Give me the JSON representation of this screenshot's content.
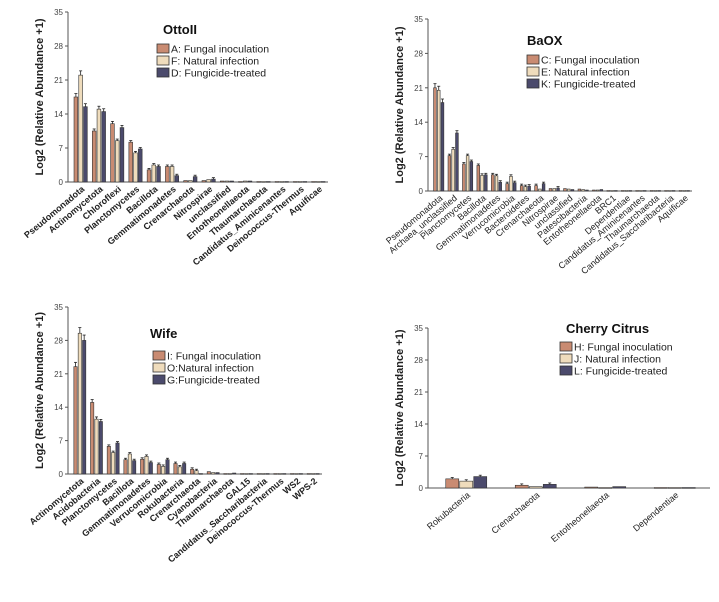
{
  "chart_data": [
    {
      "type": "bar",
      "title": "OttoII",
      "ylabel": "Log2 (Relative Abundance +1)",
      "ylim": [
        0,
        35
      ],
      "yticks": [
        0,
        7,
        14,
        21,
        28,
        35
      ],
      "legend_position": "top-right",
      "colors": [
        "#c98b72",
        "#efdcbc",
        "#4b4a6c"
      ],
      "categories": [
        "Pseudomonadota",
        "Actinomycetota",
        "Chloroflexi",
        "Planctomycetes",
        "Bacillota",
        "Gemmatimonadetes",
        "Crenarchaeota",
        "Nitrospirae",
        "unclassified",
        "Entotheonellaeota",
        "Thaumarchaeota",
        "Candidatus_Aminicenantes",
        "Deinococcus-Thermus",
        "Aquificae"
      ],
      "series": [
        {
          "name": "A: Fungal inoculation",
          "values": [
            17.5,
            10.5,
            12.0,
            8.2,
            2.5,
            3.2,
            0.3,
            0.3,
            0.2,
            0.1,
            0.1,
            0.1,
            0.1,
            0.1
          ]
        },
        {
          "name": "F: Natural infection",
          "values": [
            22.0,
            15.0,
            8.5,
            6.0,
            3.5,
            3.2,
            0.3,
            0.5,
            0.2,
            0.2,
            0.1,
            0.1,
            0.1,
            0.1
          ]
        },
        {
          "name": "D: Fungicide-treated",
          "values": [
            15.5,
            14.5,
            11.2,
            6.8,
            3.2,
            1.3,
            1.1,
            0.6,
            0.2,
            0.2,
            0.1,
            0.1,
            0.1,
            0.1
          ]
        }
      ]
    },
    {
      "type": "bar",
      "title": "BaOX",
      "ylabel": "Log2 (Relative Abundance +1)",
      "ylim": [
        0,
        35
      ],
      "yticks": [
        0,
        7,
        14,
        21,
        28,
        35
      ],
      "legend_position": "top-right",
      "colors": [
        "#c98b72",
        "#efdcbc",
        "#4b4a6c"
      ],
      "categories": [
        "Pseudomonadota",
        "Archaea_unclassified",
        "Planctomycetes",
        "Bacillota",
        "Gemmatimonadetes",
        "Verrucomicrobia",
        "Bacteroidetes",
        "Crenarchaeota",
        "Nitrospirae",
        "unclassified",
        "Patescibacteria",
        "Entotheonellaeota",
        "BRC1",
        "Dependentiae",
        "Candidatus_Aminicenantes",
        "Thaumarchaeota",
        "Candidatus_Saccharibacteria",
        "Aquificae"
      ],
      "series": [
        {
          "name": "C: Fungal inoculation",
          "values": [
            21.0,
            7.2,
            5.5,
            5.2,
            3.3,
            1.5,
            1.1,
            1.1,
            0.5,
            0.5,
            0.4,
            0.2,
            0.1,
            0.1,
            0.1,
            0.1,
            0.1,
            0.1
          ]
        },
        {
          "name": "E: Natural infection",
          "values": [
            20.5,
            8.5,
            7.2,
            3.2,
            3.1,
            3.0,
            0.9,
            0.4,
            0.5,
            0.4,
            0.3,
            0.2,
            0.1,
            0.1,
            0.1,
            0.1,
            0.1,
            0.1
          ]
        },
        {
          "name": "K: Fungicide-treated",
          "values": [
            18.0,
            11.8,
            6.0,
            3.3,
            1.8,
            1.7,
            1.0,
            1.5,
            0.6,
            0.3,
            0.2,
            0.3,
            0.1,
            0.1,
            0.1,
            0.1,
            0.1,
            0.1
          ]
        }
      ]
    },
    {
      "type": "bar",
      "title": "Wife",
      "ylabel": "Log2 (Relative Abundance +1)",
      "ylim": [
        0,
        35
      ],
      "yticks": [
        0,
        7,
        14,
        21,
        28,
        35
      ],
      "legend_position": "top-right",
      "colors": [
        "#c98b72",
        "#efdcbc",
        "#4b4a6c"
      ],
      "categories": [
        "Actinomycetota",
        "Acidobacteria",
        "Planctomycetes",
        "Bacillota",
        "Gemmatimonadetes",
        "Verrucomicrobia",
        "Rokubacteria",
        "Crenarchaeota",
        "Cyanobacteria",
        "Thaumarchaeota",
        "GAL15",
        "Candidatus_Saccharibacteria",
        "Deinococcus-Thermus",
        "WS2",
        "WPS-2"
      ],
      "series": [
        {
          "name": "I: Fungal inoculation",
          "values": [
            22.5,
            15.0,
            5.8,
            3.0,
            3.1,
            2.0,
            2.2,
            1.0,
            0.5,
            0.1,
            0.1,
            0.1,
            0.1,
            0.1,
            0.1
          ]
        },
        {
          "name": "O:Natural infection",
          "values": [
            29.5,
            11.5,
            4.5,
            4.2,
            3.7,
            1.6,
            1.5,
            0.7,
            0.3,
            0.1,
            0.1,
            0.1,
            0.1,
            0.1,
            0.1
          ]
        },
        {
          "name": "G:Fungicide-treated",
          "values": [
            28.0,
            11.0,
            6.5,
            2.8,
            2.4,
            3.0,
            2.2,
            0.1,
            0.3,
            0.2,
            0.1,
            0.1,
            0.1,
            0.1,
            0.1
          ]
        }
      ]
    },
    {
      "type": "bar",
      "title": "Cherry Citrus",
      "ylabel": "Log2 (Relative Abundance +1)",
      "ylim": [
        0,
        35
      ],
      "yticks": [
        0,
        7,
        14,
        21,
        28,
        35
      ],
      "legend_position": "top-right",
      "colors": [
        "#c98b72",
        "#efdcbc",
        "#4b4a6c"
      ],
      "categories": [
        "Rokubacteria",
        "Crenarchaeota",
        "Entotheonellaeota",
        "Dependentiae"
      ],
      "series": [
        {
          "name": "H: Fungal inoculation",
          "values": [
            2.0,
            0.6,
            0.2,
            0.1
          ]
        },
        {
          "name": "J: Natural infection",
          "values": [
            1.5,
            0.3,
            0.1,
            0.1
          ]
        },
        {
          "name": "L: Fungicide-treated",
          "values": [
            2.5,
            0.8,
            0.3,
            0.1
          ]
        }
      ]
    }
  ]
}
